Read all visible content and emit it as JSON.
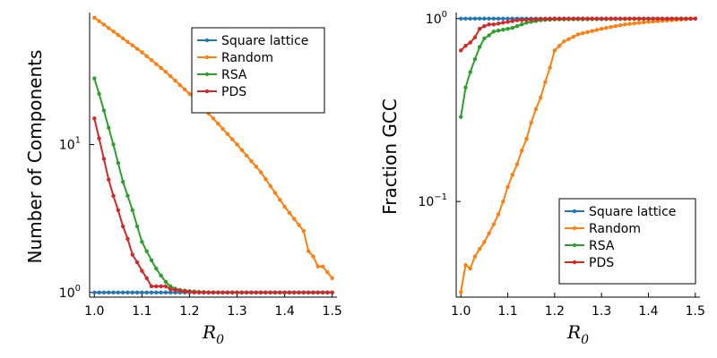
{
  "chart_data": [
    {
      "type": "line",
      "xlabel": "R_0",
      "ylabel": "Number of Components",
      "yscale": "log",
      "xlim": [
        0.99,
        1.51
      ],
      "ylim": [
        0.93,
        78
      ],
      "xticks": [
        "1.0",
        "1.1",
        "1.2",
        "1.3",
        "1.4",
        "1.5"
      ],
      "yticks": [
        {
          "base": "10",
          "exp": "0"
        },
        {
          "base": "10",
          "exp": "1"
        }
      ],
      "legend_position": "top-right",
      "grid": false,
      "series": [
        {
          "name": "Square lattice",
          "color": "#1f77b4",
          "x": [
            1.0,
            1.5
          ],
          "y": [
            1,
            1
          ]
        },
        {
          "name": "Random",
          "color": "#ff7f0e",
          "x": [
            1.0,
            1.05,
            1.1,
            1.15,
            1.2,
            1.25,
            1.3,
            1.35,
            1.4,
            1.44,
            1.45,
            1.46,
            1.47,
            1.48,
            1.5
          ],
          "y": [
            72,
            55,
            42,
            31,
            22,
            15,
            10,
            6.5,
            3.8,
            2.6,
            1.9,
            1.75,
            1.5,
            1.5,
            1.25
          ]
        },
        {
          "name": "RSA",
          "color": "#2ca02c",
          "x": [
            1.0,
            1.01,
            1.02,
            1.03,
            1.04,
            1.05,
            1.06,
            1.07,
            1.08,
            1.09,
            1.1,
            1.11,
            1.12,
            1.13,
            1.14,
            1.15,
            1.16,
            1.17,
            1.18,
            1.19,
            1.2,
            1.22,
            1.25,
            1.5
          ],
          "y": [
            28,
            22,
            17,
            13,
            10,
            7.5,
            5.6,
            4.5,
            3.6,
            2.8,
            2.2,
            1.9,
            1.65,
            1.45,
            1.3,
            1.18,
            1.1,
            1.06,
            1.04,
            1.03,
            1.02,
            1.01,
            1.0,
            1.0
          ]
        },
        {
          "name": "PDS",
          "color": "#d62728",
          "x": [
            1.0,
            1.01,
            1.02,
            1.03,
            1.04,
            1.05,
            1.06,
            1.07,
            1.08,
            1.09,
            1.1,
            1.11,
            1.12,
            1.13,
            1.14,
            1.15,
            1.16,
            1.17,
            1.18,
            1.19,
            1.2,
            1.22,
            1.25,
            1.5
          ],
          "y": [
            15,
            11,
            8,
            5.8,
            4.5,
            3.6,
            2.8,
            2.3,
            1.8,
            1.6,
            1.4,
            1.25,
            1.1,
            1.1,
            1.1,
            1.1,
            1.05,
            1.04,
            1.03,
            1.02,
            1.01,
            1.0,
            1.0,
            1.0
          ]
        }
      ]
    },
    {
      "type": "line",
      "xlabel": "R_0",
      "ylabel": "Fraction GCC",
      "yscale": "log",
      "xlim": [
        0.99,
        1.51
      ],
      "ylim": [
        0.03,
        1.08
      ],
      "xticks": [
        "1.0",
        "1.1",
        "1.2",
        "1.3",
        "1.4",
        "1.5"
      ],
      "yticks": [
        {
          "base": "10",
          "exp": "−1"
        },
        {
          "base": "10",
          "exp": "0"
        }
      ],
      "legend_position": "bottom-right",
      "grid": false,
      "series": [
        {
          "name": "Square lattice",
          "color": "#1f77b4",
          "x": [
            1.0,
            1.5
          ],
          "y": [
            1,
            1
          ]
        },
        {
          "name": "Random",
          "color": "#ff7f0e",
          "x": [
            1.0,
            1.01,
            1.02,
            1.03,
            1.04,
            1.05,
            1.06,
            1.07,
            1.08,
            1.09,
            1.1,
            1.11,
            1.12,
            1.13,
            1.14,
            1.15,
            1.16,
            1.17,
            1.18,
            1.19,
            1.2,
            1.22,
            1.25,
            1.3,
            1.35,
            1.4,
            1.45,
            1.5
          ],
          "y": [
            0.032,
            0.045,
            0.043,
            0.05,
            0.055,
            0.06,
            0.067,
            0.075,
            0.085,
            0.1,
            0.12,
            0.14,
            0.16,
            0.19,
            0.22,
            0.27,
            0.32,
            0.37,
            0.45,
            0.54,
            0.67,
            0.75,
            0.82,
            0.88,
            0.93,
            0.96,
            0.98,
            1.0
          ]
        },
        {
          "name": "RSA",
          "color": "#2ca02c",
          "x": [
            1.0,
            1.01,
            1.02,
            1.03,
            1.04,
            1.05,
            1.06,
            1.07,
            1.08,
            1.09,
            1.1,
            1.11,
            1.12,
            1.13,
            1.14,
            1.15,
            1.17,
            1.2,
            1.5
          ],
          "y": [
            0.29,
            0.42,
            0.51,
            0.6,
            0.7,
            0.78,
            0.81,
            0.85,
            0.86,
            0.87,
            0.88,
            0.89,
            0.91,
            0.93,
            0.95,
            0.96,
            0.98,
            0.99,
            1.0
          ]
        },
        {
          "name": "PDS",
          "color": "#d62728",
          "x": [
            1.0,
            1.01,
            1.02,
            1.03,
            1.04,
            1.05,
            1.06,
            1.07,
            1.08,
            1.09,
            1.1,
            1.11,
            1.12,
            1.13,
            1.14,
            1.15,
            1.17,
            1.2,
            1.5
          ],
          "y": [
            0.67,
            0.71,
            0.74,
            0.79,
            0.88,
            0.91,
            0.93,
            0.93,
            0.94,
            0.95,
            0.96,
            0.97,
            0.98,
            0.98,
            0.985,
            0.99,
            0.995,
            1.0,
            1.0
          ]
        }
      ]
    }
  ]
}
